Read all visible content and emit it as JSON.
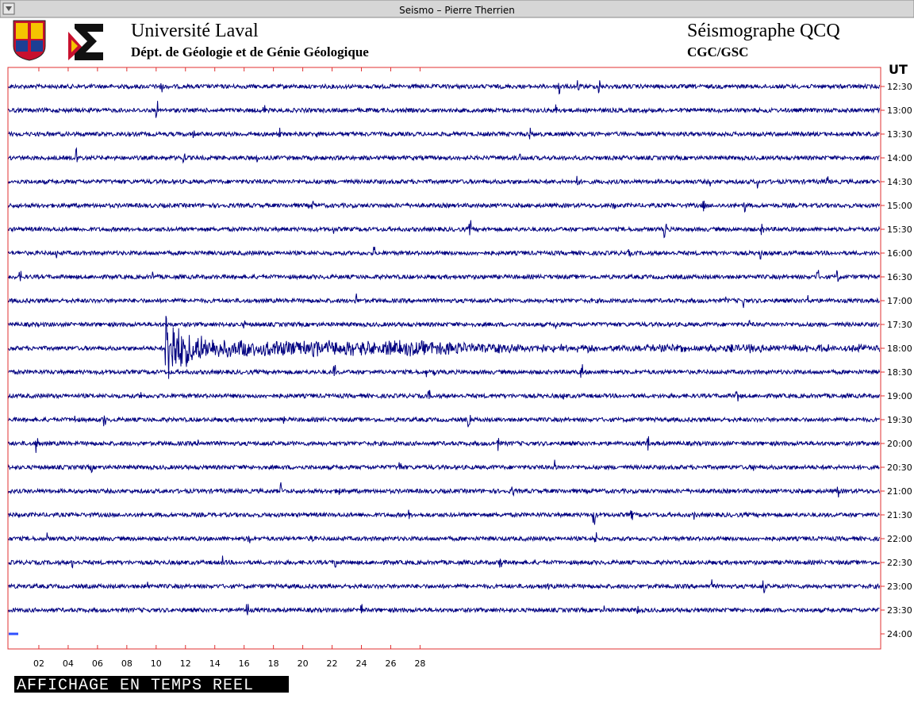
{
  "window": {
    "title": "Seismo – Pierre Therrien"
  },
  "header": {
    "university": "Université Laval",
    "department": "Dépt. de Géologie et de Génie Géologique",
    "station": "Séismographe QCQ",
    "network": "CGC/GSC"
  },
  "plot": {
    "unit_label": "UT",
    "time_labels": [
      "12:30",
      "13:00",
      "13:30",
      "14:00",
      "14:30",
      "15:00",
      "15:30",
      "16:00",
      "16:30",
      "17:00",
      "17:30",
      "18:00",
      "18:30",
      "19:00",
      "19:30",
      "20:00",
      "20:30",
      "21:00",
      "21:30",
      "22:00",
      "22:30",
      "23:00",
      "23:30",
      "24:00"
    ],
    "minute_labels": [
      "02",
      "04",
      "06",
      "08",
      "10",
      "12",
      "14",
      "16",
      "18",
      "20",
      "22",
      "24",
      "26",
      "28"
    ]
  },
  "status": "AFFICHAGE EN TEMPS REEL"
}
